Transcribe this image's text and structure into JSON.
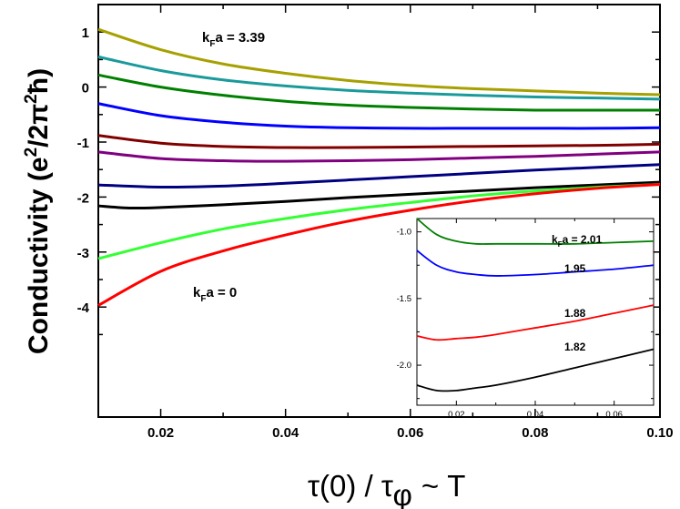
{
  "chart_data": [
    {
      "type": "line",
      "xlabel": "τ(0) / τ φ ~ T",
      "ylabel": "Conductivity (e²/2π²ħ)",
      "xlim": [
        0.01,
        0.1
      ],
      "ylim": [
        -6.0,
        1.5
      ],
      "xticks": [
        "0.02",
        "0.04",
        "0.06",
        "0.08",
        "0.10"
      ],
      "yticks": [
        "-4",
        "-3",
        "-2",
        "-1",
        "0",
        "1"
      ],
      "grid": false,
      "annotations": [
        "kFa = 3.39",
        "kFa = 0"
      ],
      "series": [
        {
          "color": "#a6a000",
          "x": [
            0.01,
            0.02,
            0.03,
            0.04,
            0.05,
            0.06,
            0.07,
            0.08,
            0.09,
            0.1
          ],
          "y": [
            1.05,
            0.68,
            0.42,
            0.25,
            0.12,
            0.03,
            -0.03,
            -0.07,
            -0.11,
            -0.14
          ]
        },
        {
          "color": "#1a9a9a",
          "x": [
            0.01,
            0.02,
            0.03,
            0.04,
            0.05,
            0.06,
            0.07,
            0.08,
            0.09,
            0.1
          ],
          "y": [
            0.55,
            0.3,
            0.13,
            0.02,
            -0.06,
            -0.11,
            -0.15,
            -0.18,
            -0.2,
            -0.22
          ]
        },
        {
          "color": "#008000",
          "x": [
            0.01,
            0.02,
            0.03,
            0.04,
            0.05,
            0.06,
            0.07,
            0.08,
            0.09,
            0.1
          ],
          "y": [
            0.22,
            0.0,
            -0.15,
            -0.26,
            -0.33,
            -0.37,
            -0.4,
            -0.42,
            -0.42,
            -0.42
          ]
        },
        {
          "color": "#0000ff",
          "x": [
            0.01,
            0.02,
            0.03,
            0.04,
            0.05,
            0.06,
            0.07,
            0.08,
            0.09,
            0.1
          ],
          "y": [
            -0.3,
            -0.52,
            -0.64,
            -0.71,
            -0.74,
            -0.75,
            -0.75,
            -0.75,
            -0.75,
            -0.74
          ]
        },
        {
          "color": "#800000",
          "x": [
            0.01,
            0.02,
            0.03,
            0.04,
            0.05,
            0.06,
            0.07,
            0.08,
            0.09,
            0.1
          ],
          "y": [
            -0.88,
            -1.02,
            -1.08,
            -1.1,
            -1.1,
            -1.09,
            -1.08,
            -1.07,
            -1.06,
            -1.04
          ]
        },
        {
          "color": "#800080",
          "x": [
            0.01,
            0.02,
            0.03,
            0.04,
            0.05,
            0.06,
            0.07,
            0.08,
            0.09,
            0.1
          ],
          "y": [
            -1.18,
            -1.3,
            -1.34,
            -1.35,
            -1.34,
            -1.32,
            -1.29,
            -1.26,
            -1.22,
            -1.18
          ]
        },
        {
          "color": "#000080",
          "x": [
            0.01,
            0.02,
            0.03,
            0.04,
            0.05,
            0.06,
            0.07,
            0.08,
            0.09,
            0.1
          ],
          "y": [
            -1.78,
            -1.82,
            -1.8,
            -1.75,
            -1.69,
            -1.63,
            -1.57,
            -1.51,
            -1.46,
            -1.41
          ]
        },
        {
          "color": "#000000",
          "x": [
            0.01,
            0.015,
            0.02,
            0.03,
            0.04,
            0.05,
            0.06,
            0.07,
            0.08,
            0.09,
            0.1
          ],
          "y": [
            -2.16,
            -2.2,
            -2.19,
            -2.14,
            -2.08,
            -2.01,
            -1.95,
            -1.89,
            -1.83,
            -1.78,
            -1.73
          ]
        },
        {
          "color": "#33ff33",
          "x": [
            0.01,
            0.02,
            0.03,
            0.04,
            0.05,
            0.06,
            0.07,
            0.08,
            0.09,
            0.1
          ],
          "y": [
            -3.12,
            -2.83,
            -2.58,
            -2.39,
            -2.23,
            -2.1,
            -1.98,
            -1.89,
            -1.82,
            -1.77
          ]
        },
        {
          "color": "#ff0000",
          "x": [
            0.01,
            0.02,
            0.03,
            0.04,
            0.05,
            0.06,
            0.07,
            0.08,
            0.09,
            0.1
          ],
          "y": [
            -3.97,
            -3.35,
            -2.98,
            -2.69,
            -2.44,
            -2.24,
            -2.07,
            -1.94,
            -1.84,
            -1.77
          ]
        }
      ]
    },
    {
      "type": "line",
      "xlim": [
        0.01,
        0.07
      ],
      "ylim": [
        -2.3,
        -0.9
      ],
      "xticks": [
        "0.02",
        "0.04",
        "0.06"
      ],
      "yticks": [
        "-1.0",
        "-1.5",
        "-2.0"
      ],
      "grid": false,
      "annotations": [
        "kFa = 2.01",
        "1.95",
        "1.88",
        "1.82"
      ],
      "series": [
        {
          "color": "#008000",
          "x": [
            0.01,
            0.015,
            0.02,
            0.025,
            0.03,
            0.04,
            0.05,
            0.06,
            0.07
          ],
          "y": [
            -0.9,
            -1.02,
            -1.07,
            -1.09,
            -1.09,
            -1.09,
            -1.09,
            -1.08,
            -1.07
          ]
        },
        {
          "color": "#0000ff",
          "x": [
            0.01,
            0.015,
            0.02,
            0.025,
            0.03,
            0.04,
            0.05,
            0.06,
            0.07
          ],
          "y": [
            -1.14,
            -1.25,
            -1.3,
            -1.32,
            -1.33,
            -1.32,
            -1.3,
            -1.28,
            -1.25
          ]
        },
        {
          "color": "#ff0000",
          "x": [
            0.01,
            0.015,
            0.02,
            0.025,
            0.03,
            0.04,
            0.05,
            0.06,
            0.07
          ],
          "y": [
            -1.78,
            -1.81,
            -1.8,
            -1.79,
            -1.77,
            -1.72,
            -1.67,
            -1.61,
            -1.55
          ]
        },
        {
          "color": "#000000",
          "x": [
            0.01,
            0.015,
            0.02,
            0.025,
            0.03,
            0.04,
            0.05,
            0.06,
            0.07
          ],
          "y": [
            -2.15,
            -2.19,
            -2.19,
            -2.17,
            -2.15,
            -2.09,
            -2.02,
            -1.95,
            -1.88
          ]
        }
      ]
    }
  ],
  "main_annotations": {
    "top_k": "k",
    "top_sub": "F",
    "top_rest": "a = 3.39",
    "bottom_k": "k",
    "bottom_sub": "F",
    "bottom_rest": "a = 0"
  },
  "inset_annotations": {
    "top_k": "k",
    "top_sub": "F",
    "top_rest": "a = 2.01",
    "l195": "1.95",
    "l188": "1.88",
    "l182": "1.82"
  },
  "axis_titles": {
    "x_tau": "τ(0) / τ",
    "x_phi": "φ",
    "x_rest": "~ T",
    "y_main": "Conductivity (e",
    "y_sup2a": "2",
    "y_mid": "/2π",
    "y_sup2b": "2",
    "y_hbar": "ħ",
    "y_close": ")"
  }
}
